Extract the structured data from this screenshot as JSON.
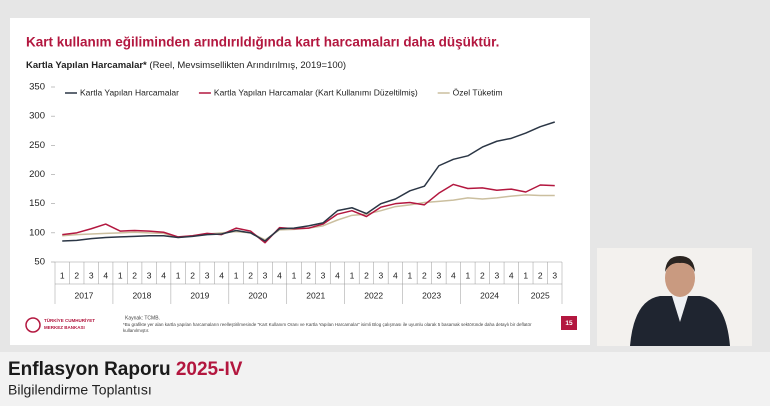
{
  "slide": {
    "title": "Kart kullanım eğiliminden arındırıldığında kart harcamaları daha düşüktür.",
    "subtitle_bold": "Kartla Yapılan Harcamalar*",
    "subtitle_rest": " (Reel, Mevsimsellikten Arındırılmış, 2019=100)",
    "source": "Kaynak: TCMB.",
    "footnote": "*Bu grafikte yer alan kartla yapılan harcamaların reelleştirilmesinde “Kart Kullanım Oranı ve Kartla Yapılan Harcamalar” isimli Blog çalışması ile uyumlu olarak 5 basamak sektöründe daha detaylı bir deflatör kullanılmıştır.",
    "logo_line1": "TÜRKİYE CUMHURİYET",
    "logo_line2": "MERKEZ BANKASI",
    "page_number": "15"
  },
  "banner": {
    "title": "Enflasyon Raporu ",
    "title_accent": "2025-IV",
    "subtitle": "Bilgilendirme Toplantısı"
  },
  "chart_data": {
    "type": "line",
    "categories": [
      "1",
      "2",
      "3",
      "4",
      "1",
      "2",
      "3",
      "4",
      "1",
      "2",
      "3",
      "4",
      "1",
      "2",
      "3",
      "4",
      "1",
      "2",
      "3",
      "4",
      "1",
      "2",
      "3",
      "4",
      "1",
      "2",
      "3",
      "4",
      "1",
      "2",
      "3",
      "4",
      "1",
      "2",
      "3"
    ],
    "years": [
      "2017",
      "2018",
      "2019",
      "2020",
      "2021",
      "2022",
      "2023",
      "2024",
      "2025"
    ],
    "ylim": [
      50,
      350
    ],
    "yticks": [
      50,
      100,
      150,
      200,
      250,
      300,
      350
    ],
    "grid": false,
    "series": [
      {
        "name": "Kartla Yapılan Harcamalar",
        "color": "#2b3645",
        "values": [
          86,
          87,
          90,
          92,
          93,
          94,
          95,
          95,
          92,
          94,
          97,
          98,
          104,
          100,
          86,
          107,
          108,
          112,
          117,
          138,
          143,
          133,
          150,
          158,
          172,
          180,
          215,
          226,
          232,
          247,
          257,
          262,
          271,
          282,
          290
        ]
      },
      {
        "name": "Kartla Yapılan Harcamalar (Kart Kullanımı Düzeltilmiş)",
        "color": "#b3173f",
        "values": [
          97,
          100,
          107,
          115,
          103,
          104,
          103,
          101,
          93,
          95,
          99,
          97,
          108,
          103,
          83,
          109,
          107,
          108,
          115,
          132,
          138,
          128,
          144,
          150,
          152,
          148,
          168,
          183,
          176,
          177,
          173,
          175,
          170,
          182,
          181
        ]
      },
      {
        "name": "Özel Tüketim",
        "color": "#cbbf9f",
        "values": [
          95,
          97,
          98,
          99,
          100,
          101,
          100,
          99,
          92,
          95,
          98,
          100,
          102,
          100,
          88,
          105,
          106,
          108,
          112,
          122,
          130,
          132,
          138,
          145,
          148,
          152,
          154,
          156,
          160,
          158,
          160,
          163,
          165,
          164,
          164
        ]
      }
    ]
  }
}
